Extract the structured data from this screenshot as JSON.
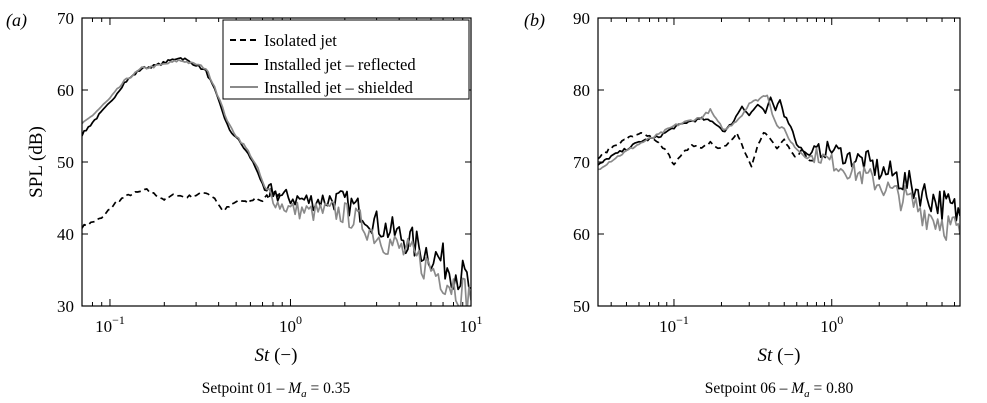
{
  "chart_data": [
    {
      "type": "line",
      "panel_label": "(a)",
      "caption": {
        "main": "Setpoint 01 – ",
        "var": "M",
        "sub": "a",
        "rest": " = 0.35"
      },
      "xlabel": {
        "italic": "St",
        "rest": " (−)"
      },
      "ylabel": "SPL (dB)",
      "xscale": "log",
      "xlim": [
        0.07,
        10
      ],
      "ylim": [
        30,
        70
      ],
      "x_ticks": [
        {
          "base": "10",
          "exp": "−1",
          "value": 0.1
        },
        {
          "base": "10",
          "exp": "0",
          "value": 1
        },
        {
          "base": "10",
          "exp": "1",
          "value": 10
        }
      ],
      "y_ticks": [
        "30",
        "40",
        "50",
        "60",
        "70"
      ],
      "legend": {
        "position": "top-right",
        "entries": [
          "Isolated jet",
          "Installed jet – reflected",
          "Installed jet – shielded"
        ]
      },
      "series": [
        {
          "name": "Isolated jet",
          "color": "#000000",
          "dash": "dashed",
          "x": [
            0.07,
            0.09,
            0.11,
            0.13,
            0.16,
            0.18,
            0.2,
            0.23,
            0.26,
            0.3,
            0.34,
            0.38,
            0.42,
            0.47,
            0.52,
            0.58,
            0.64,
            0.7,
            0.76,
            0.82,
            0.88
          ],
          "y": [
            41,
            42.2,
            44.6,
            45.5,
            46.1,
            45.4,
            44.8,
            45.5,
            45.1,
            45.4,
            45.8,
            45.0,
            43.2,
            44.0,
            44.7,
            44.3,
            45.0,
            44.6,
            45.6,
            46.2,
            45.8
          ]
        },
        {
          "name": "Installed jet – reflected",
          "color": "#000000",
          "dash": "solid",
          "x": [
            0.07,
            0.08,
            0.1,
            0.12,
            0.15,
            0.18,
            0.21,
            0.24,
            0.26,
            0.28,
            0.3,
            0.34,
            0.38,
            0.42,
            0.46,
            0.5,
            0.55,
            0.6,
            0.66,
            0.72,
            0.78,
            0.85,
            1.0,
            1.3,
            1.7,
            2.0,
            2.5,
            3.0,
            4.0,
            5.0,
            6.0,
            7.0,
            8.0,
            9.0,
            10.0
          ],
          "y": [
            53.8,
            55.5,
            58.2,
            61.0,
            63.0,
            63.4,
            64.0,
            64.5,
            64.3,
            63.8,
            63.5,
            62.6,
            60.0,
            57.0,
            54.3,
            53.5,
            52.0,
            50.6,
            48.6,
            45.9,
            46.1,
            45.4,
            45.0,
            44.6,
            44.8,
            44.5,
            43.2,
            41.4,
            39.8,
            38.4,
            37.2,
            36.2,
            35.0,
            34.0,
            32.5
          ]
        },
        {
          "name": "Installed jet – shielded",
          "color": "#8a8a8a",
          "dash": "solid",
          "x": [
            0.07,
            0.08,
            0.1,
            0.12,
            0.15,
            0.18,
            0.21,
            0.24,
            0.26,
            0.28,
            0.3,
            0.34,
            0.38,
            0.42,
            0.46,
            0.5,
            0.55,
            0.6,
            0.66,
            0.72,
            0.78,
            0.85,
            1.0,
            1.3,
            1.7,
            2.0,
            2.5,
            3.0,
            4.0,
            5.0,
            6.0,
            7.0,
            8.0,
            9.0,
            10.0
          ],
          "y": [
            55.2,
            56.5,
            58.8,
            61.2,
            63.0,
            63.3,
            63.7,
            64.1,
            64.0,
            63.7,
            63.6,
            63.0,
            60.5,
            57.5,
            55.0,
            53.7,
            52.4,
            51.0,
            49.0,
            46.4,
            45.5,
            44.2,
            43.5,
            43.0,
            43.2,
            42.8,
            41.5,
            39.8,
            38.0,
            36.5,
            35.2,
            34.0,
            33.0,
            32.0,
            30.8
          ]
        }
      ]
    },
    {
      "type": "line",
      "panel_label": "(b)",
      "caption": {
        "main": "Setpoint 06 – ",
        "var": "M",
        "sub": "a",
        "rest": " = 0.80"
      },
      "xlabel": {
        "italic": "St",
        "rest": " (−)"
      },
      "ylabel": "",
      "xscale": "log",
      "xlim": [
        0.033,
        6.5
      ],
      "ylim": [
        50,
        90
      ],
      "x_ticks": [
        {
          "base": "10",
          "exp": "−1",
          "value": 0.1
        },
        {
          "base": "10",
          "exp": "0",
          "value": 1
        }
      ],
      "y_ticks": [
        "50",
        "60",
        "70",
        "80",
        "90"
      ],
      "series": [
        {
          "name": "Isolated jet",
          "color": "#000000",
          "dash": "dashed",
          "x": [
            0.033,
            0.04,
            0.05,
            0.06,
            0.07,
            0.08,
            0.09,
            0.1,
            0.11,
            0.13,
            0.15,
            0.17,
            0.19,
            0.22,
            0.25,
            0.28,
            0.31,
            0.34,
            0.37,
            0.4,
            0.45,
            0.5,
            0.55,
            0.6,
            0.65,
            0.7,
            0.8
          ],
          "y": [
            70.5,
            72.0,
            73.2,
            74.0,
            73.5,
            72.5,
            71.5,
            69.5,
            70.8,
            72.5,
            71.8,
            72.8,
            71.8,
            72.5,
            74.0,
            71.5,
            69.3,
            72.5,
            74.0,
            73.5,
            72.0,
            73.2,
            71.5,
            70.6,
            72.0,
            70.5,
            69.8
          ]
        },
        {
          "name": "Installed jet – reflected",
          "color": "#000000",
          "dash": "solid",
          "x": [
            0.033,
            0.04,
            0.05,
            0.06,
            0.08,
            0.1,
            0.12,
            0.15,
            0.18,
            0.21,
            0.24,
            0.27,
            0.3,
            0.34,
            0.38,
            0.41,
            0.44,
            0.47,
            0.5,
            0.55,
            0.6,
            0.7,
            0.8,
            1.0,
            1.3,
            1.7,
            2.0,
            2.5,
            3.0,
            4.0,
            5.0,
            6.0,
            6.5
          ],
          "y": [
            69.5,
            70.8,
            71.8,
            72.8,
            73.5,
            74.8,
            75.5,
            76.0,
            75.5,
            74.2,
            75.8,
            77.8,
            76.5,
            78.0,
            76.8,
            78.8,
            77.2,
            78.8,
            76.5,
            75.0,
            72.5,
            71.0,
            71.5,
            71.8,
            70.6,
            70.0,
            68.8,
            68.2,
            67.0,
            65.4,
            64.2,
            63.2,
            62.5
          ]
        },
        {
          "name": "Installed jet – shielded",
          "color": "#8a8a8a",
          "dash": "solid",
          "x": [
            0.033,
            0.04,
            0.05,
            0.06,
            0.08,
            0.1,
            0.12,
            0.15,
            0.17,
            0.19,
            0.21,
            0.24,
            0.27,
            0.3,
            0.33,
            0.36,
            0.39,
            0.42,
            0.45,
            0.5,
            0.55,
            0.6,
            0.7,
            0.8,
            1.0,
            1.3,
            1.7,
            2.0,
            2.5,
            3.0,
            4.0,
            5.0,
            6.0,
            6.5
          ],
          "y": [
            69.0,
            70.2,
            71.5,
            72.5,
            73.8,
            75.0,
            75.6,
            76.2,
            77.2,
            75.5,
            74.4,
            75.5,
            76.5,
            78.2,
            78.5,
            79.0,
            79.4,
            76.8,
            75.0,
            74.5,
            72.8,
            71.8,
            70.6,
            71.0,
            70.0,
            68.8,
            67.8,
            67.0,
            65.5,
            64.8,
            62.8,
            61.8,
            60.6,
            60.0
          ]
        }
      ]
    }
  ]
}
